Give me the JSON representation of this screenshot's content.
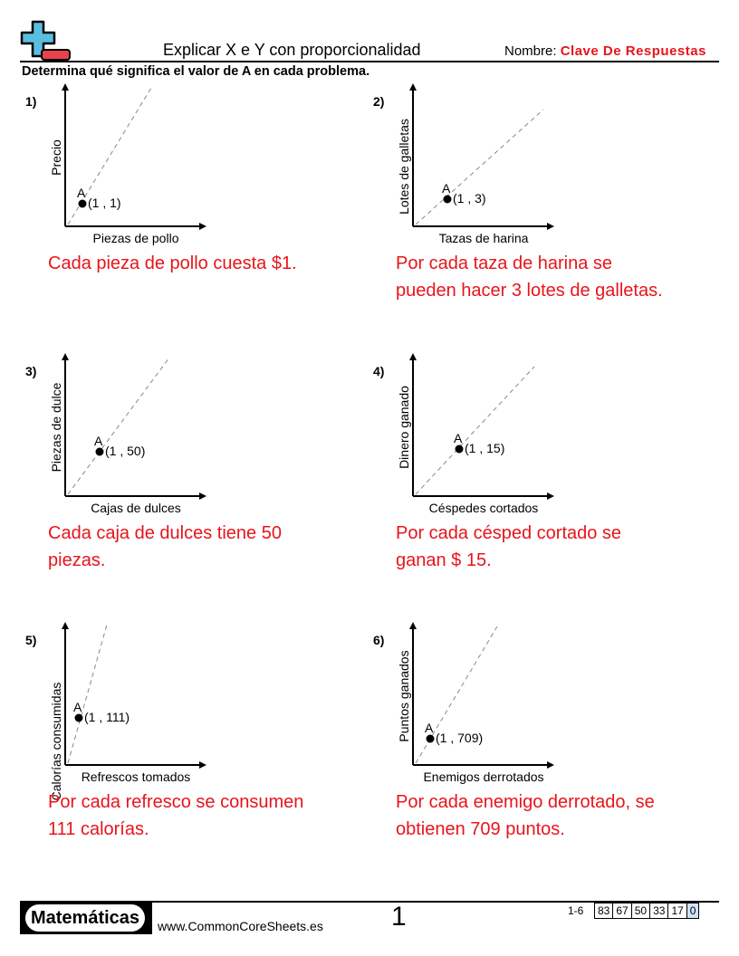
{
  "header": {
    "title": "Explicar X e Y con proporcionalidad",
    "name_label": "Nombre:",
    "name_value": "Clave De Respuestas",
    "instructions": "Determina qué significa el valor de A en cada problema."
  },
  "problems": [
    {
      "number": "1)",
      "y_label": "Precio",
      "x_label": "Piezas de pollo",
      "point_label": "A",
      "point": "(1 , 1)",
      "answer": "Cada pieza de pollo cuesta $1."
    },
    {
      "number": "2)",
      "y_label": "Lotes de galletas",
      "x_label": "Tazas de harina",
      "point_label": "A",
      "point": "(1 , 3)",
      "answer": "Por cada taza de harina se pueden hacer 3 lotes de galletas."
    },
    {
      "number": "3)",
      "y_label": "Piezas de dulce",
      "x_label": "Cajas de dulces",
      "point_label": "A",
      "point": "(1 , 50)",
      "answer": "Cada caja de dulces tiene 50 piezas."
    },
    {
      "number": "4)",
      "y_label": "Dinero ganado",
      "x_label": "Céspedes cortados",
      "point_label": "A",
      "point": "(1 , 15)",
      "answer": "Por cada césped cortado se ganan $ 15."
    },
    {
      "number": "5)",
      "y_label": "Calorías consumidas",
      "x_label": "Refrescos tomados",
      "point_label": "A",
      "point": "(1 , 111)",
      "answer": "Por cada refresco se consumen 111 calorías."
    },
    {
      "number": "6)",
      "y_label": "Puntos ganados",
      "x_label": "Enemigos derrotados",
      "point_label": "A",
      "point": "(1 , 709)",
      "answer": "Por cada enemigo derrotado, se obtienen 709 puntos."
    }
  ],
  "footer": {
    "brand": "Matemáticas",
    "url": "www.CommonCoreSheets.es",
    "page": "1",
    "range": "1-6",
    "scores": [
      "83",
      "67",
      "50",
      "33",
      "17",
      "0"
    ]
  },
  "colors": {
    "answer": "#e8141b",
    "logo_blue": "#5bbde0",
    "logo_red": "#e8434a"
  }
}
